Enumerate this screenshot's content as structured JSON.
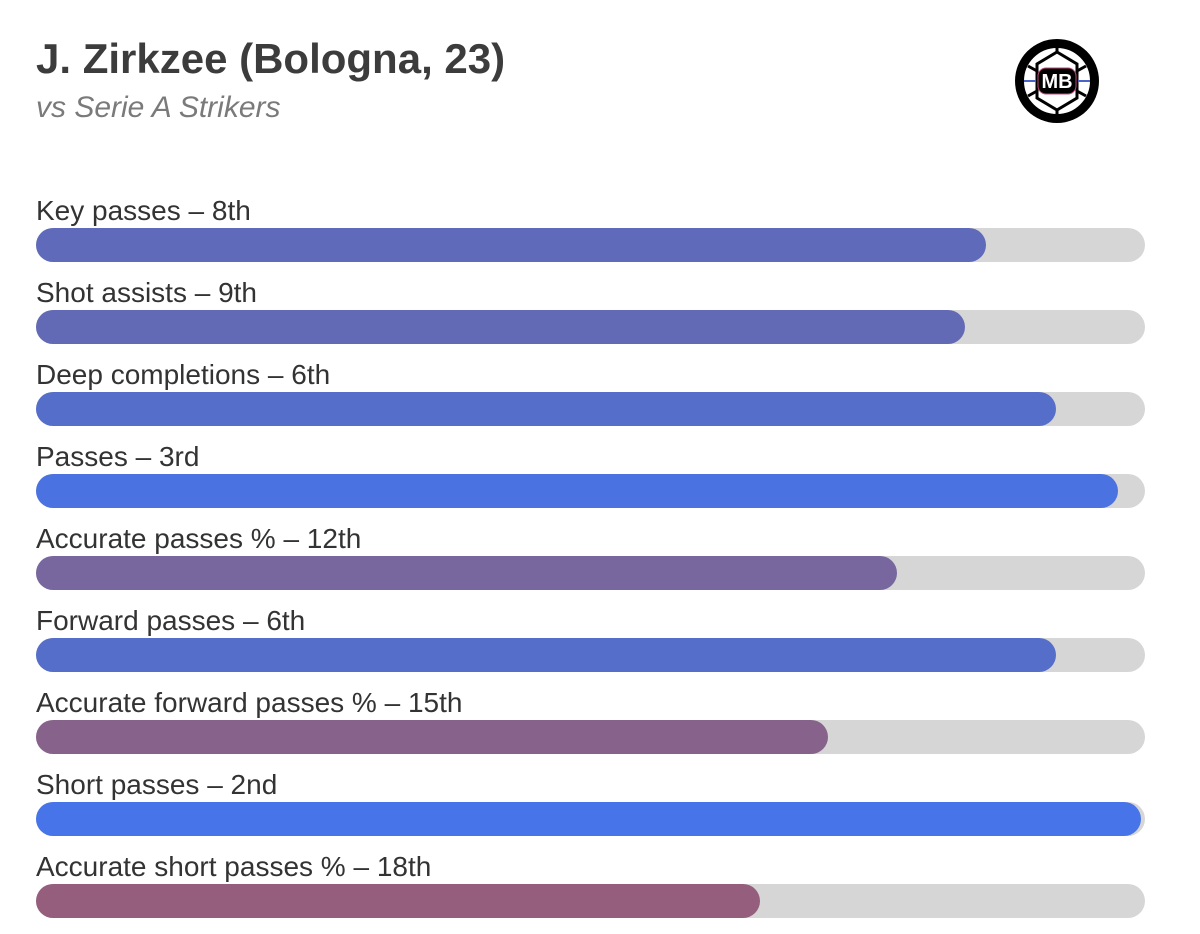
{
  "header": {
    "title": "J. Zirkzee (Bologna, 23)",
    "subtitle": "vs Serie A Strikers"
  },
  "logo": {
    "text": "MB",
    "icon": "mb-ball-logo-icon",
    "colors": {
      "ring": "#000000",
      "panel_lines": "#4a63c8",
      "accent": "#c04a7a"
    }
  },
  "chart_data": {
    "type": "bar",
    "orientation": "horizontal",
    "xlim": [
      0,
      100
    ],
    "track_color": "#d6d6d6",
    "bars": [
      {
        "label": "Key passes – 8th",
        "value": 85.7,
        "color": "#5f6abb"
      },
      {
        "label": "Shot assists – 9th",
        "value": 83.8,
        "color": "#636ab5"
      },
      {
        "label": "Deep completions – 6th",
        "value": 92.0,
        "color": "#556ec9"
      },
      {
        "label": "Passes – 3rd",
        "value": 97.6,
        "color": "#4a72e0"
      },
      {
        "label": "Accurate passes % – 12th",
        "value": 77.6,
        "color": "#77679e"
      },
      {
        "label": "Forward passes – 6th",
        "value": 92.0,
        "color": "#556ec9"
      },
      {
        "label": "Accurate forward passes % – 15th",
        "value": 71.4,
        "color": "#87638c"
      },
      {
        "label": "Short passes – 2nd",
        "value": 99.6,
        "color": "#4774e8"
      },
      {
        "label": "Accurate short passes % – 18th",
        "value": 65.3,
        "color": "#955e7c"
      }
    ]
  }
}
